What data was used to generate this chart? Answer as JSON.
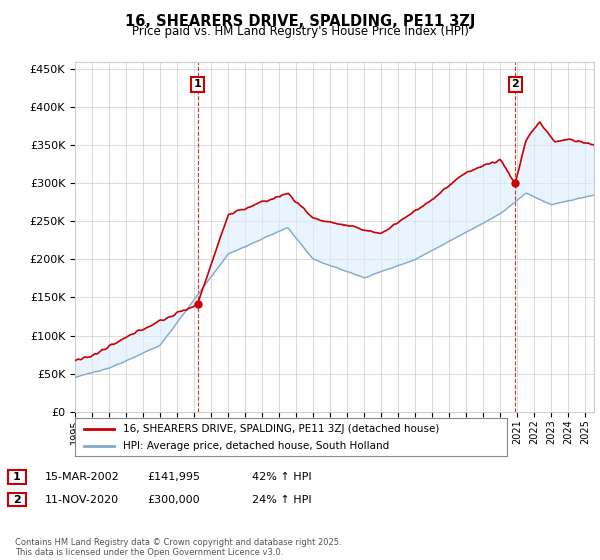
{
  "title": "16, SHEARERS DRIVE, SPALDING, PE11 3ZJ",
  "subtitle": "Price paid vs. HM Land Registry's House Price Index (HPI)",
  "legend_entry1": "16, SHEARERS DRIVE, SPALDING, PE11 3ZJ (detached house)",
  "legend_entry2": "HPI: Average price, detached house, South Holland",
  "annotation1_label": "1",
  "annotation1_date": "15-MAR-2002",
  "annotation1_price": "£141,995",
  "annotation1_hpi": "42% ↑ HPI",
  "annotation2_label": "2",
  "annotation2_date": "11-NOV-2020",
  "annotation2_price": "£300,000",
  "annotation2_hpi": "24% ↑ HPI",
  "footer": "Contains HM Land Registry data © Crown copyright and database right 2025.\nThis data is licensed under the Open Government Licence v3.0.",
  "red_color": "#cc0000",
  "blue_color": "#7faacc",
  "blue_fill": "#ddeeff",
  "background_color": "#ffffff",
  "grid_color": "#cccccc",
  "ylim": [
    0,
    460000
  ],
  "yticks": [
    0,
    50000,
    100000,
    150000,
    200000,
    250000,
    300000,
    350000,
    400000,
    450000
  ],
  "sale1_year": 2002.21,
  "sale1_value": 141995,
  "sale2_year": 2020.87,
  "sale2_value": 300000
}
